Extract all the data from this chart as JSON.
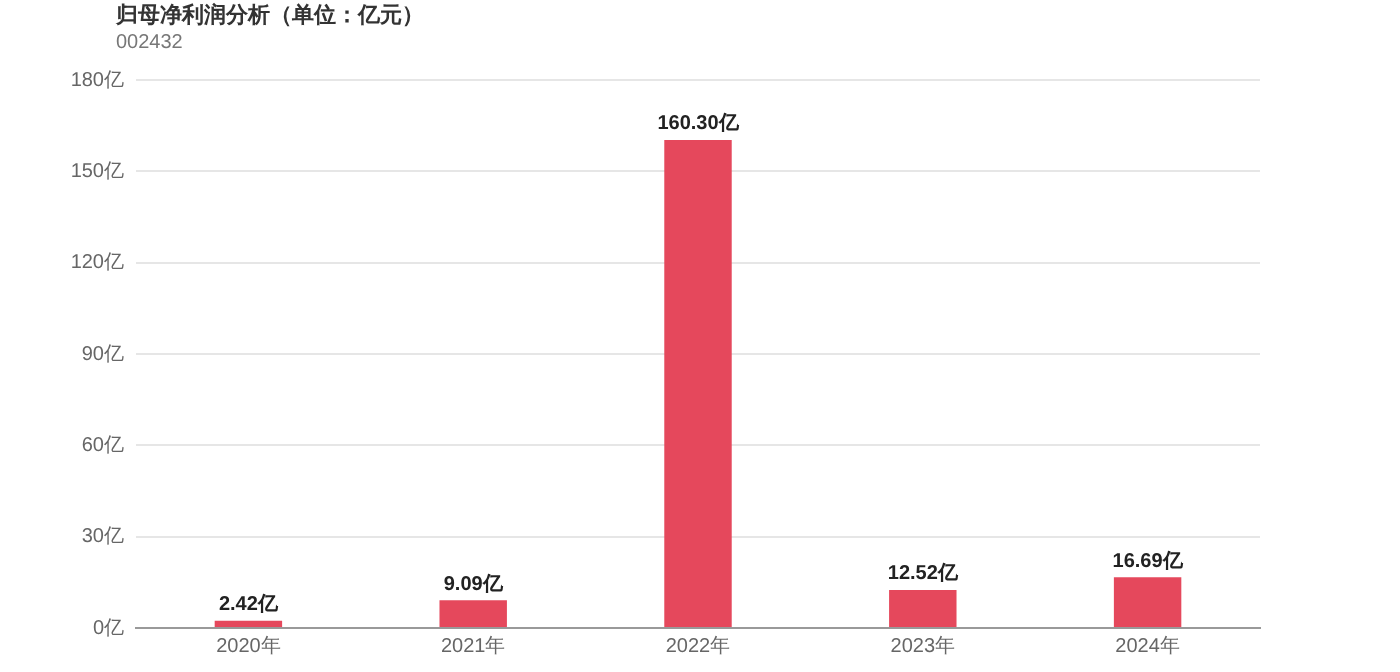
{
  "chart_data": {
    "type": "bar",
    "title": "归母净利润分析（单位：亿元）",
    "subtitle": "002432",
    "categories": [
      "2020年",
      "2021年",
      "2022年",
      "2023年",
      "2024年"
    ],
    "values": [
      2.42,
      9.09,
      160.3,
      12.52,
      16.69
    ],
    "value_labels": [
      "2.42亿",
      "9.09亿",
      "160.30亿",
      "12.52亿",
      "16.69亿"
    ],
    "color": "#e5485c",
    "ylim": [
      0,
      180
    ],
    "yticks": [
      {
        "value": 0,
        "label": "0亿"
      },
      {
        "value": 30,
        "label": "30亿"
      },
      {
        "value": 60,
        "label": "60亿"
      },
      {
        "value": 90,
        "label": "90亿"
      },
      {
        "value": 120,
        "label": "120亿"
      },
      {
        "value": 150,
        "label": "150亿"
      },
      {
        "value": 180,
        "label": "180亿"
      }
    ],
    "grid": "y",
    "legend": false
  }
}
